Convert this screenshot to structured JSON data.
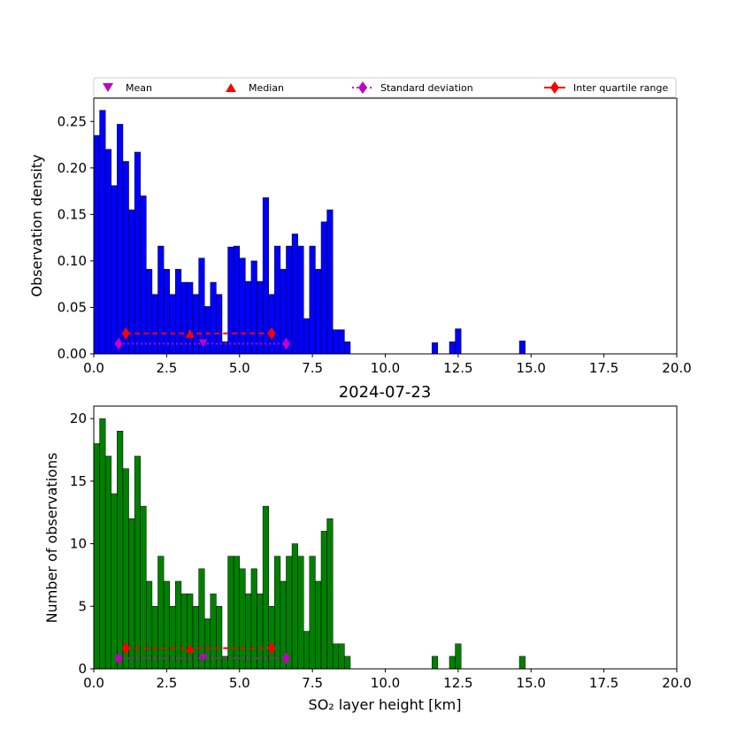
{
  "chart_data": [
    {
      "type": "bar",
      "title": "",
      "xlabel": "",
      "ylabel": "Observation density",
      "xlim": [
        0,
        20
      ],
      "ylim": [
        0,
        0.275
      ],
      "xticks": [
        "0.0",
        "2.5",
        "5.0",
        "7.5",
        "10.0",
        "12.5",
        "15.0",
        "17.5",
        "20.0"
      ],
      "yticks": [
        "0.00",
        "0.05",
        "0.10",
        "0.15",
        "0.20",
        "0.25"
      ],
      "bin_width": 0.2,
      "bar_color": "#0000ff",
      "bins_left": [
        0.0,
        0.2,
        0.4,
        0.6,
        0.8,
        1.0,
        1.2,
        1.4,
        1.6,
        1.8,
        2.0,
        2.2,
        2.4,
        2.6,
        2.8,
        3.0,
        3.2,
        3.4,
        3.6,
        3.8,
        4.0,
        4.2,
        4.4,
        4.6,
        4.8,
        5.0,
        5.2,
        5.4,
        5.6,
        5.8,
        6.0,
        6.2,
        6.4,
        6.6,
        6.8,
        7.0,
        7.2,
        7.4,
        7.6,
        7.8,
        8.0,
        8.2,
        8.4,
        8.6,
        11.6,
        12.2,
        12.4,
        14.6
      ],
      "values": [
        0.235,
        0.262,
        0.22,
        0.181,
        0.247,
        0.207,
        0.155,
        0.217,
        0.17,
        0.091,
        0.064,
        0.116,
        0.091,
        0.064,
        0.091,
        0.077,
        0.077,
        0.064,
        0.103,
        0.051,
        0.077,
        0.064,
        0.013,
        0.115,
        0.116,
        0.103,
        0.078,
        0.1,
        0.078,
        0.168,
        0.064,
        0.116,
        0.091,
        0.116,
        0.129,
        0.116,
        0.038,
        0.116,
        0.091,
        0.142,
        0.155,
        0.026,
        0.026,
        0.013,
        0.012,
        0.013,
        0.027,
        0.014
      ],
      "stats": {
        "mean": {
          "x": 3.75,
          "y": 0.011
        },
        "median": {
          "x": 3.3,
          "y": 0.022
        },
        "std": [
          0.85,
          6.6
        ],
        "iqr": [
          1.1,
          6.1
        ]
      },
      "legend": {
        "placement": "top",
        "entries": [
          "Mean",
          "Median",
          "Standard deviation",
          "Inter quartile range"
        ]
      }
    },
    {
      "type": "bar",
      "title": "2024-07-23",
      "xlabel": "SO₂ layer height [km]",
      "ylabel": "Number of observations",
      "xlim": [
        0,
        20
      ],
      "ylim": [
        0,
        21
      ],
      "xticks": [
        "0.0",
        "2.5",
        "5.0",
        "7.5",
        "10.0",
        "12.5",
        "15.0",
        "17.5",
        "20.0"
      ],
      "yticks": [
        "0",
        "5",
        "10",
        "15",
        "20"
      ],
      "bin_width": 0.2,
      "bar_color": "#008000",
      "bins_left": [
        0.0,
        0.2,
        0.4,
        0.6,
        0.8,
        1.0,
        1.2,
        1.4,
        1.6,
        1.8,
        2.0,
        2.2,
        2.4,
        2.6,
        2.8,
        3.0,
        3.2,
        3.4,
        3.6,
        3.8,
        4.0,
        4.2,
        4.4,
        4.6,
        4.8,
        5.0,
        5.2,
        5.4,
        5.6,
        5.8,
        6.0,
        6.2,
        6.4,
        6.6,
        6.8,
        7.0,
        7.2,
        7.4,
        7.6,
        7.8,
        8.0,
        8.2,
        8.4,
        8.6,
        11.6,
        12.2,
        12.4,
        14.6
      ],
      "values": [
        18,
        20,
        17,
        14,
        19,
        16,
        12,
        17,
        13,
        7,
        5,
        9,
        7,
        5,
        7,
        6,
        6,
        5,
        8,
        4,
        6,
        5,
        1,
        9,
        9,
        8,
        6,
        8,
        6,
        13,
        5,
        9,
        7,
        9,
        10,
        9,
        3,
        9,
        7,
        11,
        12,
        2,
        2,
        1,
        1,
        1,
        2,
        1
      ],
      "stats": {
        "mean": {
          "x": 3.75,
          "y": 0.85
        },
        "median": {
          "x": 3.3,
          "y": 1.65
        },
        "std": [
          0.85,
          6.6
        ],
        "iqr": [
          1.1,
          6.1
        ]
      }
    }
  ],
  "colors": {
    "mean": "#c000c0",
    "median": "#ff0000",
    "std": "#c000c0",
    "iqr": "#ff0000"
  }
}
